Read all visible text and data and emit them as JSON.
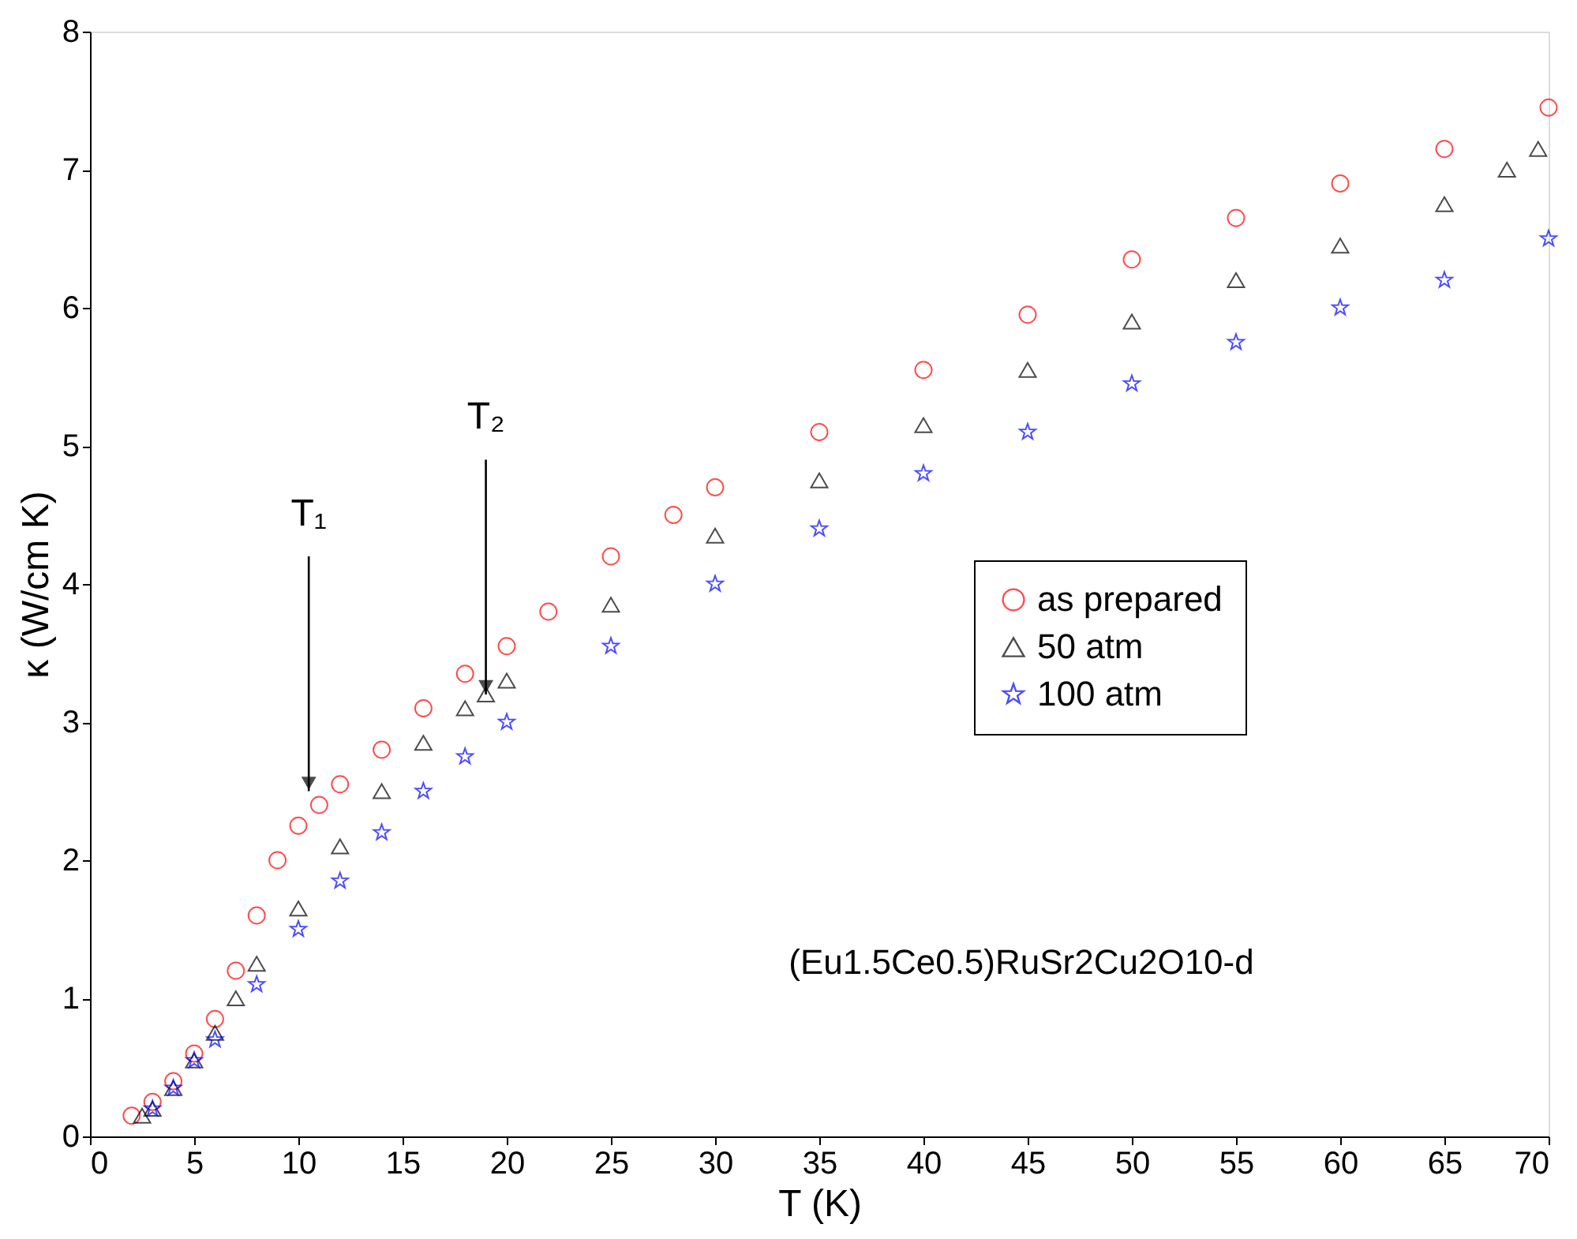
{
  "chart_data": {
    "type": "scatter",
    "xlabel": "T (K)",
    "ylabel": "κ (W/cm K)",
    "xlim": [
      0,
      70
    ],
    "xticks": [
      0,
      5,
      10,
      15,
      20,
      25,
      30,
      35,
      40,
      45,
      50,
      55,
      60,
      65,
      70
    ],
    "ylim": [
      0,
      8
    ],
    "yticks": [
      0,
      1,
      2,
      3,
      4,
      5,
      6,
      7,
      8
    ],
    "grid": false,
    "legend": "right",
    "series": [
      {
        "name": "as prepared",
        "color": "#ff0000",
        "marker": "circle",
        "x": [
          2,
          3,
          4,
          5,
          6,
          7,
          8,
          9,
          10,
          11,
          12,
          14,
          16,
          18,
          20,
          22,
          25,
          28,
          30,
          35,
          40,
          45,
          50,
          55,
          60,
          65,
          70
        ],
        "values": [
          0.15,
          0.25,
          0.4,
          0.6,
          0.85,
          1.2,
          1.6,
          2.0,
          2.25,
          2.4,
          2.55,
          2.8,
          3.1,
          3.35,
          3.55,
          3.8,
          4.2,
          4.5,
          4.7,
          5.1,
          5.55,
          5.95,
          6.35,
          6.65,
          6.9,
          7.15,
          7.45
        ]
      },
      {
        "name": "50 atm",
        "color": "#000000",
        "marker": "triangle",
        "x": [
          2.5,
          3,
          4,
          5,
          6,
          7,
          8,
          10,
          12,
          14,
          16,
          18,
          19,
          20,
          25,
          30,
          35,
          40,
          45,
          50,
          55,
          60,
          65,
          68,
          69.5
        ],
        "values": [
          0.15,
          0.2,
          0.35,
          0.55,
          0.75,
          1.0,
          1.25,
          1.65,
          2.1,
          2.5,
          2.85,
          3.1,
          3.2,
          3.3,
          3.85,
          4.35,
          4.75,
          5.15,
          5.55,
          5.9,
          6.2,
          6.45,
          6.75,
          7.0,
          7.15
        ]
      },
      {
        "name": "100 atm",
        "color": "#0000ff",
        "marker": "star",
        "x": [
          3,
          4,
          5,
          6,
          8,
          10,
          12,
          14,
          16,
          18,
          20,
          25,
          30,
          35,
          40,
          45,
          50,
          55,
          60,
          65,
          70
        ],
        "values": [
          0.2,
          0.35,
          0.55,
          0.7,
          1.1,
          1.5,
          1.85,
          2.2,
          2.5,
          2.75,
          3.0,
          3.55,
          4.0,
          4.4,
          4.8,
          5.1,
          5.45,
          5.75,
          6.0,
          6.2,
          6.5
        ]
      }
    ],
    "annotations": [
      {
        "text": "T₁",
        "x": 10.5,
        "y": 2.5
      },
      {
        "text": "T₂",
        "x": 19,
        "y": 3.2
      },
      "(Eu1.5Ce0.5)RuSr2Cu2O10-d"
    ]
  }
}
